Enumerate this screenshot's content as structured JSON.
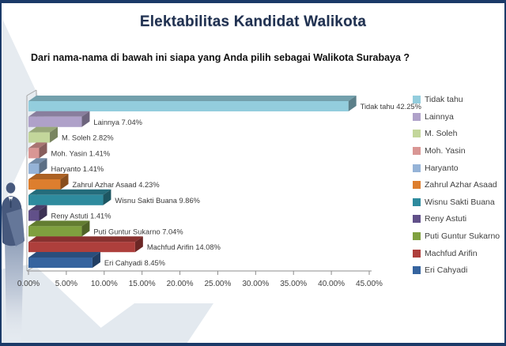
{
  "slide": {
    "title": "Elektabilitas Kandidat Walikota",
    "question": "Dari nama-nama di bawah ini siapa yang Anda pilih sebagai Walikota Surabaya ?"
  },
  "chart_data": {
    "type": "bar",
    "orientation": "horizontal",
    "style": "3d",
    "title": "Elektabilitas Kandidat Walikota",
    "categories": [
      "Tidak tahu",
      "Lainnya",
      "M. Soleh",
      "Moh. Yasin",
      "Haryanto",
      "Zahrul Azhar Asaad",
      "Wisnu Sakti Buana",
      "Reny Astuti",
      "Puti Guntur Sukarno",
      "Machfud Arifin",
      "Eri Cahyadi"
    ],
    "values": [
      42.25,
      7.04,
      2.82,
      1.41,
      1.41,
      4.23,
      9.86,
      1.41,
      7.04,
      14.08,
      8.45
    ],
    "data_labels": [
      "Tidak tahu 42.25%",
      "Lainnya 7.04%",
      "M. Soleh 2.82%",
      "Moh. Yasin 1.41%",
      "Haryanto 1.41%",
      "Zahrul Azhar Asaad 4.23%",
      "Wisnu Sakti Buana 9.86%",
      "Reny Astuti 1.41%",
      "Puti Guntur Sukarno 7.04%",
      "Machfud Arifin 14.08%",
      "Eri Cahyadi 8.45%"
    ],
    "colors": [
      "#93CDDD",
      "#AFA1C9",
      "#C3D69B",
      "#D99694",
      "#95B3D7",
      "#DD7E2E",
      "#2E8B9E",
      "#615089",
      "#7FA03F",
      "#AE3F3C",
      "#36649F"
    ],
    "xlabel": "",
    "ylabel": "",
    "xlim": [
      0,
      45
    ],
    "x_tick_step": 5,
    "x_ticks": [
      "0.00%",
      "5.00%",
      "10.00%",
      "15.00%",
      "20.00%",
      "25.00%",
      "30.00%",
      "35.00%",
      "40.00%",
      "45.00%"
    ],
    "grid": false,
    "legend_position": "right",
    "legend": [
      "Tidak tahu",
      "Lainnya",
      "M. Soleh",
      "Moh. Yasin",
      "Haryanto",
      "Zahrul Azhar Asaad",
      "Wisnu Sakti Buana",
      "Reny Astuti",
      "Puti Guntur Sukarno",
      "Machfud Arifin",
      "Eri Cahyadi"
    ]
  },
  "colors": {
    "border": "#1B3A68",
    "title_text": "#1F3050",
    "question_text": "#111111",
    "axis_text": "#3F3F3F",
    "data_label_text": "#3A3A3A",
    "axis_line": "#8C8C8C",
    "wall_outline": "#A6A6A6",
    "decoration_light": "#E6EBF0",
    "silhouette_dark": "#47597D",
    "silhouette_light": "#8E9EB8"
  }
}
